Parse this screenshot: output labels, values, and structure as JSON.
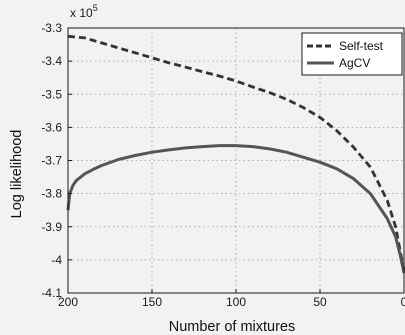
{
  "chart_data": {
    "type": "line",
    "xlabel": "Number of mixtures",
    "ylabel": "Log likelihood",
    "y_multiplier": "x 10",
    "y_multiplier_exp": "5",
    "x_reversed": true,
    "xlim": [
      200,
      0
    ],
    "ylim": [
      -4.1,
      -3.3
    ],
    "x_ticks": [
      200,
      150,
      100,
      50,
      0
    ],
    "x_tick_labels": [
      "200",
      "150",
      "100",
      "50",
      "0"
    ],
    "y_ticks": [
      -3.3,
      -3.4,
      -3.5,
      -3.6,
      -3.7,
      -3.8,
      -3.9,
      -4.0,
      -4.1
    ],
    "y_tick_labels": [
      "-3.3",
      "-3.4",
      "-3.5",
      "-3.6",
      "-3.7",
      "-3.8",
      "-3.9",
      "-4",
      "-4.1"
    ],
    "grid": true,
    "legend_position": "top-right",
    "series": [
      {
        "name": "Self-test",
        "style": "dashed",
        "color": "#333333",
        "x": [
          200,
          190,
          180,
          170,
          160,
          150,
          140,
          130,
          120,
          110,
          100,
          90,
          80,
          70,
          60,
          50,
          40,
          30,
          20,
          10,
          5,
          2,
          0
        ],
        "y": [
          -3.325,
          -3.33,
          -3.345,
          -3.36,
          -3.375,
          -3.39,
          -3.405,
          -3.418,
          -3.432,
          -3.445,
          -3.46,
          -3.478,
          -3.495,
          -3.515,
          -3.54,
          -3.57,
          -3.61,
          -3.66,
          -3.72,
          -3.82,
          -3.9,
          -3.98,
          -4.03
        ]
      },
      {
        "name": "AgCV",
        "style": "solid",
        "color": "#555555",
        "x": [
          200,
          199,
          197,
          195,
          190,
          185,
          180,
          170,
          160,
          150,
          140,
          130,
          120,
          110,
          100,
          90,
          80,
          70,
          60,
          50,
          40,
          30,
          20,
          10,
          5,
          2,
          0
        ],
        "y": [
          -3.85,
          -3.8,
          -3.775,
          -3.76,
          -3.74,
          -3.727,
          -3.715,
          -3.697,
          -3.685,
          -3.675,
          -3.668,
          -3.662,
          -3.658,
          -3.655,
          -3.655,
          -3.658,
          -3.665,
          -3.675,
          -3.69,
          -3.705,
          -3.725,
          -3.755,
          -3.8,
          -3.875,
          -3.93,
          -3.99,
          -4.04
        ]
      }
    ]
  }
}
